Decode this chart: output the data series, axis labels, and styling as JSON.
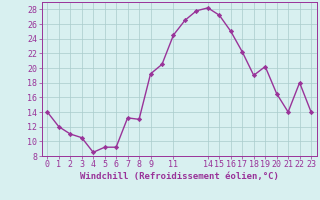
{
  "hours": [
    0,
    1,
    2,
    3,
    4,
    5,
    6,
    7,
    8,
    9,
    10,
    11,
    12,
    13,
    14,
    15,
    16,
    17,
    18,
    19,
    20,
    21,
    22,
    23
  ],
  "windchill": [
    14,
    12,
    11,
    10.5,
    8.5,
    9.2,
    9.2,
    13.2,
    13.0,
    19.2,
    20.5,
    24.5,
    26.5,
    27.8,
    28.2,
    27.2,
    25.0,
    22.2,
    19.0,
    20.2,
    16.5,
    14.0,
    18.0,
    14.0
  ],
  "line_color": "#993399",
  "marker": "D",
  "marker_size": 2.2,
  "bg_color": "#d8f0f0",
  "grid_color": "#aacccc",
  "xlabel": "Windchill (Refroidissement éolien,°C)",
  "ylim": [
    8,
    29
  ],
  "yticks": [
    8,
    10,
    12,
    14,
    16,
    18,
    20,
    22,
    24,
    26,
    28
  ],
  "xticks": [
    0,
    1,
    2,
    3,
    4,
    5,
    6,
    7,
    8,
    9,
    11,
    14,
    15,
    16,
    17,
    18,
    19,
    20,
    21,
    22,
    23
  ],
  "xlabel_fontsize": 6.5,
  "tick_fontsize": 6,
  "line_width": 1.0
}
